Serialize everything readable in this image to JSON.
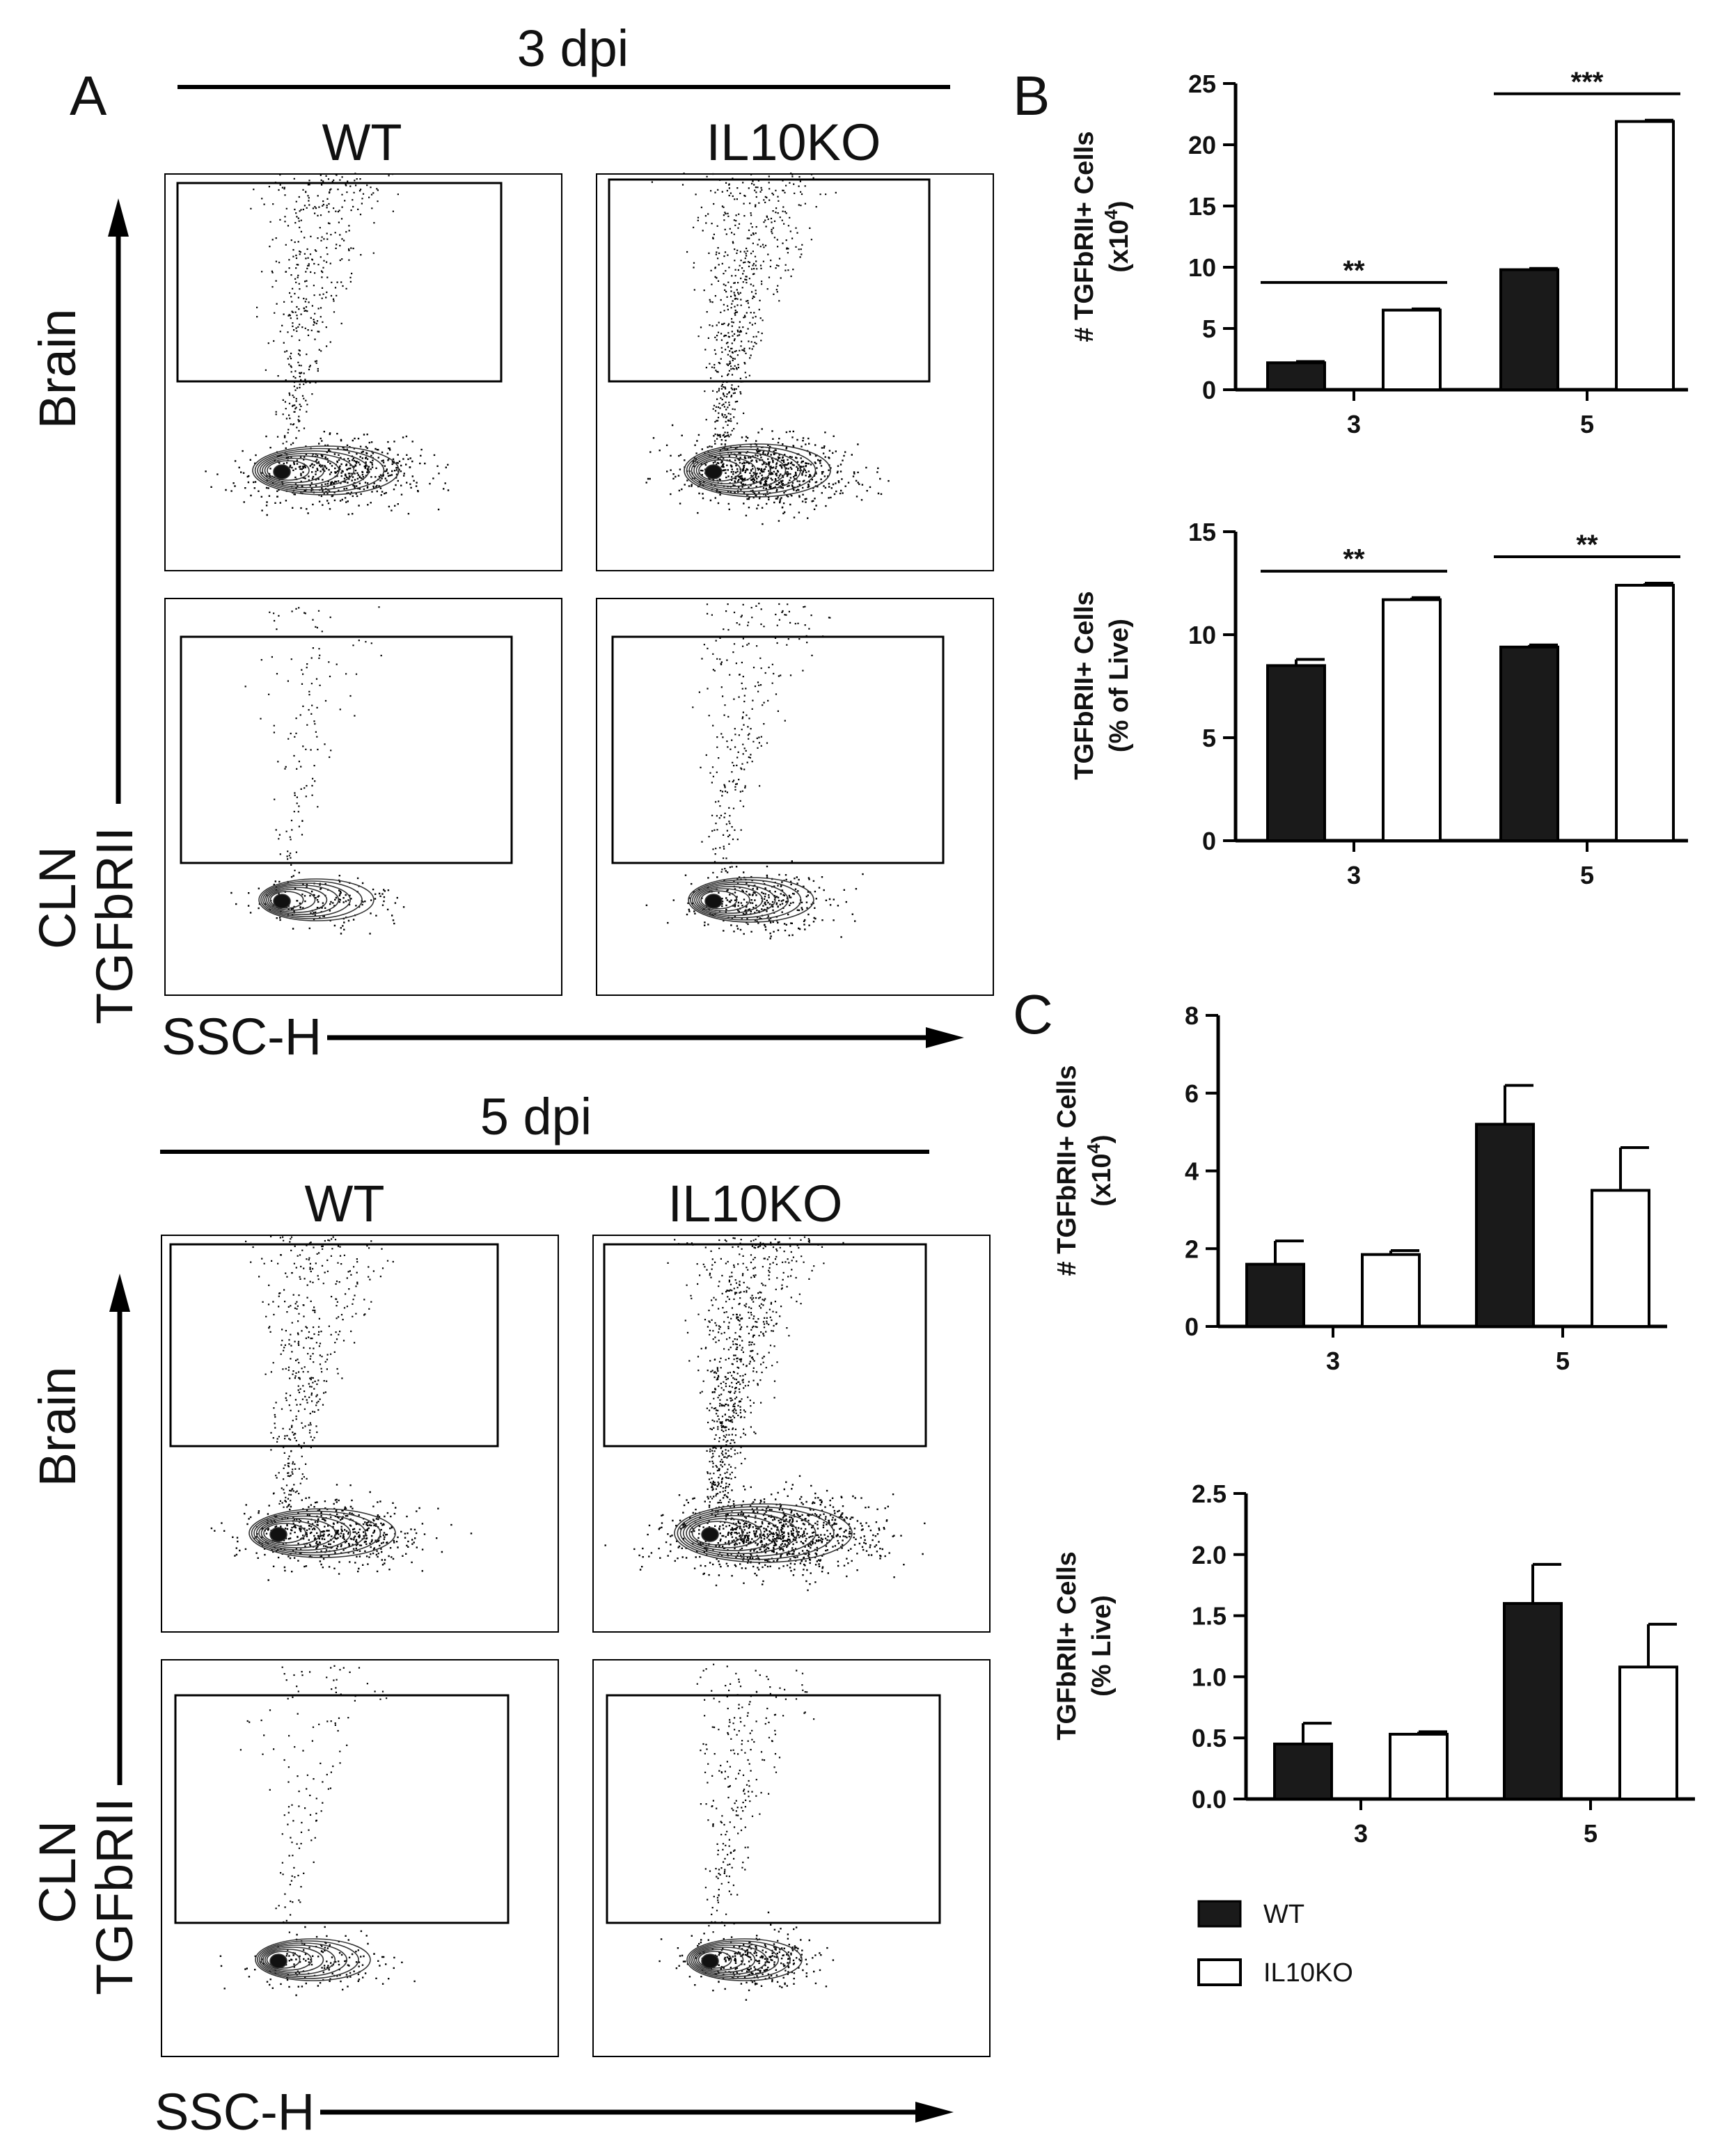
{
  "figure": {
    "panel_a": "A",
    "panel_b": "B",
    "panel_c": "C",
    "flow_blocks": [
      {
        "timepoint": "3 dpi",
        "col1": "WT",
        "col2": "IL10KO",
        "row1": "Brain",
        "row2": "CLN",
        "y_axis": "TGFbRII",
        "x_axis": "SSC-H"
      },
      {
        "timepoint": "5 dpi",
        "col1": "WT",
        "col2": "IL10KO",
        "row1": "Brain",
        "row2": "CLN",
        "y_axis": "TGFbRII",
        "x_axis": "SSC-H"
      }
    ],
    "legend": [
      {
        "label": "WT",
        "color": "#1a1a1a"
      },
      {
        "label": "IL10KO",
        "color": "#ffffff"
      }
    ]
  },
  "chart_data": [
    {
      "type": "bar",
      "panel": "B",
      "ylabel_line1": "# TGFbRII+ Cells",
      "ylabel_line2": "(x10",
      "ylabel_sup": "4",
      "ylabel_end": ")",
      "categories": [
        "3",
        "5"
      ],
      "ylim": [
        0,
        25
      ],
      "yticks": [
        "0",
        "5",
        "10",
        "15",
        "20",
        "25"
      ],
      "series": [
        {
          "name": "WT",
          "values": [
            2.2,
            9.8
          ],
          "errors": [
            0.1,
            0.1
          ]
        },
        {
          "name": "IL10KO",
          "values": [
            6.5,
            21.9
          ],
          "errors": [
            0.1,
            0.1
          ]
        }
      ],
      "significance": [
        "**",
        "***"
      ]
    },
    {
      "type": "bar",
      "panel": "B",
      "ylabel_line1": "TGFbRII+ Cells",
      "ylabel_line2": "(% of Live)",
      "categories": [
        "3",
        "5"
      ],
      "ylim": [
        0,
        15
      ],
      "yticks": [
        "0",
        "5",
        "10",
        "15"
      ],
      "series": [
        {
          "name": "WT",
          "values": [
            8.5,
            9.4
          ],
          "errors": [
            0.3,
            0.1
          ]
        },
        {
          "name": "IL10KO",
          "values": [
            11.7,
            12.4
          ],
          "errors": [
            0.1,
            0.1
          ]
        }
      ],
      "significance": [
        "**",
        "**"
      ]
    },
    {
      "type": "bar",
      "panel": "C",
      "ylabel_line1": "# TGFbRII+ Cells",
      "ylabel_line2": "(x10",
      "ylabel_sup": "4",
      "ylabel_end": ")",
      "categories": [
        "3",
        "5"
      ],
      "ylim": [
        0,
        8
      ],
      "yticks": [
        "0",
        "2",
        "4",
        "6",
        "8"
      ],
      "series": [
        {
          "name": "WT",
          "values": [
            1.6,
            5.2
          ],
          "errors": [
            0.6,
            1.0
          ]
        },
        {
          "name": "IL10KO",
          "values": [
            1.85,
            3.5
          ],
          "errors": [
            0.1,
            1.1
          ]
        }
      ],
      "significance": [
        "",
        ""
      ]
    },
    {
      "type": "bar",
      "panel": "C",
      "ylabel_line1": "TGFbRII+ Cells",
      "ylabel_line2": "(% Live)",
      "categories": [
        "3",
        "5"
      ],
      "ylim": [
        0,
        2.5
      ],
      "yticks": [
        "0.0",
        "0.5",
        "1.0",
        "1.5",
        "2.0",
        "2.5"
      ],
      "series": [
        {
          "name": "WT",
          "values": [
            0.45,
            1.6
          ],
          "errors": [
            0.17,
            0.32
          ]
        },
        {
          "name": "IL10KO",
          "values": [
            0.53,
            1.08
          ],
          "errors": [
            0.02,
            0.35
          ]
        }
      ],
      "significance": [
        "",
        ""
      ]
    }
  ]
}
